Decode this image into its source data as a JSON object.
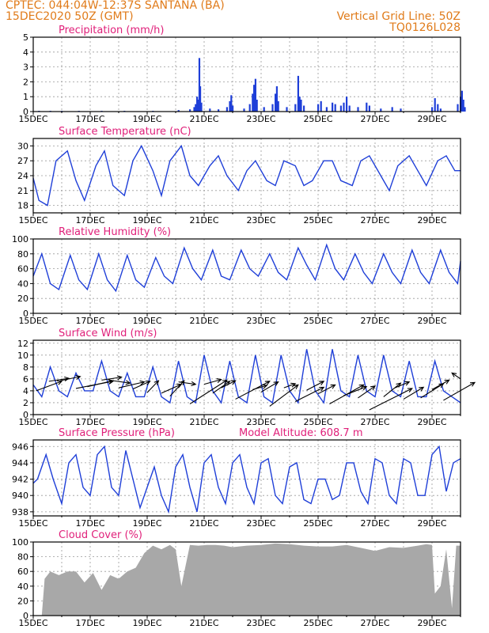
{
  "header": {
    "line1": "CPTEC:   044:04W-12:37S   SANTANA (BA)",
    "line2": "15DEC2020 50Z (GMT)",
    "right1": "Vertical Grid Line: 50Z",
    "right2": "TQ0126L028"
  },
  "colors": {
    "header": "#e07b1a",
    "title": "#e0207a",
    "series": "#1f3fd8",
    "bars": "#1f3fd8",
    "cloud": "#a8a8a8",
    "wind": "#000000",
    "grid": "#9a9a9a"
  },
  "x_tick_labels": [
    "15DEC",
    "17DEC",
    "19DEC",
    "21DEC",
    "23DEC",
    "25DEC",
    "27DEC",
    "29DEC"
  ],
  "chart_data": [
    {
      "id": "precipitation",
      "type": "bar",
      "title": "Precipitation  (mm/h)",
      "ylim": [
        0,
        5
      ],
      "yticks": [
        0,
        1,
        2,
        3,
        4,
        5
      ],
      "x_unit": "days since 15DEC",
      "bars": [
        [
          0.2,
          0.05
        ],
        [
          0.6,
          0.05
        ],
        [
          1.0,
          0.05
        ],
        [
          1.6,
          0.05
        ],
        [
          2.4,
          0.05
        ],
        [
          3.2,
          0.05
        ],
        [
          4.2,
          0.05
        ],
        [
          5.1,
          0.1
        ],
        [
          5.5,
          0.15
        ],
        [
          5.65,
          0.3
        ],
        [
          5.7,
          0.5
        ],
        [
          5.75,
          1.0
        ],
        [
          5.8,
          0.8
        ],
        [
          5.83,
          3.6
        ],
        [
          5.86,
          1.7
        ],
        [
          5.9,
          0.6
        ],
        [
          6.2,
          0.2
        ],
        [
          6.5,
          0.15
        ],
        [
          6.8,
          0.3
        ],
        [
          6.9,
          0.7
        ],
        [
          6.95,
          1.1
        ],
        [
          7.0,
          0.4
        ],
        [
          7.4,
          0.2
        ],
        [
          7.6,
          0.5
        ],
        [
          7.7,
          1.2
        ],
        [
          7.75,
          1.8
        ],
        [
          7.8,
          2.2
        ],
        [
          7.85,
          0.8
        ],
        [
          8.1,
          0.3
        ],
        [
          8.4,
          0.5
        ],
        [
          8.5,
          1.2
        ],
        [
          8.55,
          1.7
        ],
        [
          8.6,
          0.7
        ],
        [
          8.9,
          0.3
        ],
        [
          9.2,
          0.5
        ],
        [
          9.3,
          2.4
        ],
        [
          9.35,
          1.0
        ],
        [
          9.4,
          0.8
        ],
        [
          9.5,
          0.4
        ],
        [
          10.0,
          0.5
        ],
        [
          10.1,
          0.7
        ],
        [
          10.3,
          0.3
        ],
        [
          10.5,
          0.6
        ],
        [
          10.6,
          0.5
        ],
        [
          10.8,
          0.4
        ],
        [
          10.9,
          0.6
        ],
        [
          11.0,
          1.0
        ],
        [
          11.1,
          0.4
        ],
        [
          11.4,
          0.3
        ],
        [
          11.7,
          0.6
        ],
        [
          11.8,
          0.4
        ],
        [
          12.2,
          0.2
        ],
        [
          12.6,
          0.3
        ],
        [
          12.9,
          0.2
        ],
        [
          14.0,
          0.3
        ],
        [
          14.1,
          0.9
        ],
        [
          14.2,
          0.5
        ],
        [
          14.3,
          0.2
        ],
        [
          14.9,
          0.5
        ],
        [
          15.0,
          1.0
        ],
        [
          15.05,
          1.4
        ],
        [
          15.1,
          0.8
        ],
        [
          15.15,
          0.3
        ]
      ]
    },
    {
      "id": "temperature",
      "type": "line",
      "title": "Surface Temperature (nC)",
      "ylim": [
        16.5,
        31.5
      ],
      "yticks": [
        18,
        21,
        24,
        27,
        30
      ],
      "x_unit": "days since 15DEC",
      "x": [
        0,
        0.2,
        0.5,
        0.8,
        1.2,
        1.5,
        1.8,
        2.2,
        2.5,
        2.8,
        3.2,
        3.5,
        3.8,
        4.2,
        4.5,
        4.8,
        5.2,
        5.5,
        5.8,
        6.2,
        6.5,
        6.8,
        7.2,
        7.5,
        7.8,
        8.2,
        8.5,
        8.8,
        9.2,
        9.5,
        9.8,
        10.2,
        10.5,
        10.8,
        11.2,
        11.5,
        11.8,
        12.2,
        12.5,
        12.8,
        13.2,
        13.5,
        13.8,
        14.2,
        14.5,
        14.8,
        15.0
      ],
      "y": [
        23.5,
        19,
        18,
        27,
        29,
        23,
        19,
        26,
        29,
        22,
        20,
        27,
        30,
        25,
        20,
        27,
        30,
        24,
        22,
        26,
        28,
        24,
        21,
        25,
        27,
        23,
        22,
        27,
        26,
        22,
        23,
        27,
        27,
        23,
        22,
        27,
        28,
        24,
        21,
        26,
        28,
        25,
        22,
        27,
        28,
        25,
        25
      ]
    },
    {
      "id": "humidity",
      "type": "line",
      "title": "Relative Humidity (%)",
      "ylim": [
        0,
        100
      ],
      "yticks": [
        0,
        20,
        40,
        60,
        80,
        100
      ],
      "x_unit": "days since 15DEC",
      "x": [
        0,
        0.3,
        0.6,
        0.9,
        1.3,
        1.6,
        1.9,
        2.3,
        2.6,
        2.9,
        3.3,
        3.6,
        3.9,
        4.3,
        4.6,
        4.9,
        5.3,
        5.6,
        5.9,
        6.3,
        6.6,
        6.9,
        7.3,
        7.6,
        7.9,
        8.3,
        8.6,
        8.9,
        9.3,
        9.6,
        9.9,
        10.3,
        10.6,
        10.9,
        11.3,
        11.6,
        11.9,
        12.3,
        12.6,
        12.9,
        13.3,
        13.6,
        13.9,
        14.3,
        14.6,
        14.9,
        15.0
      ],
      "y": [
        50,
        80,
        40,
        32,
        78,
        45,
        32,
        80,
        45,
        30,
        78,
        45,
        35,
        75,
        50,
        40,
        88,
        60,
        45,
        85,
        50,
        45,
        85,
        60,
        50,
        80,
        55,
        45,
        88,
        65,
        45,
        92,
        60,
        45,
        80,
        55,
        40,
        80,
        55,
        40,
        85,
        55,
        40,
        85,
        55,
        40,
        70
      ]
    },
    {
      "id": "wind",
      "type": "line",
      "title": "Surface Wind (m/s)",
      "ylim": [
        0,
        12.5
      ],
      "yticks": [
        0,
        2,
        4,
        6,
        8,
        10,
        12
      ],
      "x_unit": "days since 15DEC",
      "x": [
        0,
        0.3,
        0.6,
        0.9,
        1.2,
        1.5,
        1.8,
        2.1,
        2.4,
        2.7,
        3.0,
        3.3,
        3.6,
        3.9,
        4.2,
        4.5,
        4.8,
        5.1,
        5.4,
        5.7,
        6.0,
        6.3,
        6.6,
        6.9,
        7.2,
        7.5,
        7.8,
        8.1,
        8.4,
        8.7,
        9.0,
        9.3,
        9.6,
        9.9,
        10.2,
        10.5,
        10.8,
        11.1,
        11.4,
        11.7,
        12.0,
        12.3,
        12.6,
        12.9,
        13.2,
        13.5,
        13.8,
        14.1,
        14.4,
        14.7,
        15.0
      ],
      "y": [
        5,
        3,
        8,
        4,
        3,
        7,
        4,
        4,
        9,
        4,
        3,
        7,
        3,
        3,
        8,
        3,
        2,
        9,
        3,
        2,
        10,
        4,
        2,
        9,
        3,
        2,
        10,
        3,
        2,
        10,
        4,
        2,
        11,
        4,
        2,
        11,
        4,
        3,
        10,
        4,
        3,
        10,
        4,
        3,
        9,
        3,
        3,
        9,
        4,
        3,
        2
      ],
      "arrows": [
        [
          0.1,
          4.0,
          0.9,
          1.6
        ],
        [
          0.55,
          5.6,
          0.7,
          0.5
        ],
        [
          0.95,
          5.7,
          0.7,
          0.7
        ],
        [
          1.5,
          4.4,
          1.3,
          1.2
        ],
        [
          1.9,
          4.7,
          0.9,
          1.0
        ],
        [
          2.4,
          5.8,
          0.7,
          0.5
        ],
        [
          2.8,
          5.7,
          0.6,
          -0.4
        ],
        [
          3.0,
          4.5,
          0.9,
          1.0
        ],
        [
          3.5,
          4.3,
          0.6,
          1.3
        ],
        [
          4.0,
          3.7,
          0.4,
          2.0
        ],
        [
          4.5,
          3.6,
          0.7,
          1.5
        ],
        [
          4.8,
          3.1,
          0.5,
          2.6
        ],
        [
          5.1,
          5.5,
          0.6,
          -0.4
        ],
        [
          5.5,
          1.8,
          1.3,
          4.0
        ],
        [
          6.0,
          5.1,
          0.6,
          0.8
        ],
        [
          6.3,
          3.6,
          0.6,
          2.0
        ],
        [
          6.6,
          4.5,
          0.5,
          1.2
        ],
        [
          7.1,
          2.6,
          1.2,
          3.0
        ],
        [
          7.7,
          4.2,
          0.5,
          0.7
        ],
        [
          8.0,
          3.8,
          0.6,
          1.7
        ],
        [
          8.3,
          1.4,
          1.0,
          3.6
        ],
        [
          8.8,
          4.5,
          0.4,
          0.7
        ],
        [
          9.2,
          2.2,
          1.0,
          2.4
        ],
        [
          9.6,
          4.1,
          0.6,
          1.5
        ],
        [
          10.0,
          3.5,
          0.6,
          1.5
        ],
        [
          10.4,
          1.8,
          1.2,
          3.2
        ],
        [
          10.9,
          3.2,
          0.8,
          1.5
        ],
        [
          11.4,
          2.8,
          0.6,
          2.0
        ],
        [
          11.8,
          0.8,
          1.5,
          3.6
        ],
        [
          12.3,
          3.0,
          0.6,
          2.3
        ],
        [
          12.7,
          4.5,
          0.5,
          1.0
        ],
        [
          13.0,
          2.6,
          0.7,
          2.0
        ],
        [
          13.6,
          2.8,
          0.8,
          2.4
        ],
        [
          14.0,
          4.2,
          0.6,
          1.6
        ],
        [
          14.4,
          2.4,
          1.1,
          3.0
        ],
        [
          15.0,
          6.0,
          -0.3,
          1.0
        ]
      ]
    },
    {
      "id": "pressure",
      "type": "line",
      "title": "Surface Pressure (hPa)",
      "subtitle": "Model Altitude: 608.7  m",
      "ylim": [
        937.5,
        946.8
      ],
      "yticks": [
        938,
        940,
        942,
        944,
        946
      ],
      "x_unit": "days since 15DEC",
      "x": [
        0,
        0.15,
        0.45,
        0.7,
        1.0,
        1.25,
        1.5,
        1.75,
        2.0,
        2.25,
        2.5,
        2.75,
        3.0,
        3.25,
        3.5,
        3.75,
        4.0,
        4.25,
        4.5,
        4.75,
        5.0,
        5.25,
        5.5,
        5.75,
        6.0,
        6.25,
        6.5,
        6.75,
        7.0,
        7.25,
        7.5,
        7.75,
        8.0,
        8.25,
        8.5,
        8.75,
        9.0,
        9.25,
        9.5,
        9.75,
        10.0,
        10.25,
        10.5,
        10.75,
        11.0,
        11.25,
        11.5,
        11.75,
        12.0,
        12.25,
        12.5,
        12.75,
        13.0,
        13.25,
        13.5,
        13.75,
        14.0,
        14.25,
        14.5,
        14.75,
        15.0
      ],
      "y": [
        941.5,
        942,
        945,
        942,
        939,
        944,
        945,
        941,
        940,
        945,
        946,
        941,
        940,
        945.5,
        942,
        938.5,
        941,
        943.5,
        940,
        938,
        943.5,
        945,
        941,
        938,
        944,
        945,
        941,
        939,
        944,
        945,
        941,
        939,
        944,
        944.5,
        940,
        939,
        943.5,
        944,
        939.5,
        939,
        942,
        942,
        939.5,
        940,
        944,
        944,
        940.5,
        939,
        944.5,
        944,
        940,
        939,
        944.5,
        944,
        940,
        940,
        945,
        946,
        940.5,
        944,
        944.5
      ]
    },
    {
      "id": "cloud",
      "type": "area",
      "title": "Cloud Cover (%)",
      "ylim": [
        0,
        100
      ],
      "yticks": [
        0,
        20,
        40,
        60,
        80,
        100
      ],
      "x_unit": "days since 15DEC",
      "x": [
        0,
        0.3,
        0.4,
        0.6,
        0.9,
        1.2,
        1.5,
        1.8,
        2.1,
        2.4,
        2.7,
        3.0,
        3.3,
        3.6,
        3.9,
        4.2,
        4.5,
        4.8,
        5.0,
        5.2,
        5.5,
        5.8,
        6.1,
        6.4,
        6.7,
        7.0,
        7.5,
        8.0,
        8.5,
        9.0,
        9.5,
        10.0,
        10.5,
        11.0,
        11.5,
        12.0,
        12.5,
        13.0,
        13.5,
        13.8,
        14.0,
        14.1,
        14.3,
        14.5,
        14.7,
        14.85,
        15.0
      ],
      "y": [
        0,
        0,
        50,
        60,
        55,
        60,
        60,
        45,
        58,
        35,
        55,
        50,
        60,
        65,
        85,
        95,
        90,
        96,
        90,
        40,
        96,
        95,
        96,
        96,
        95,
        93,
        95,
        96,
        98,
        97,
        95,
        94,
        94,
        96,
        92,
        88,
        93,
        92,
        95,
        97,
        96,
        30,
        40,
        90,
        10,
        95,
        95
      ]
    }
  ]
}
